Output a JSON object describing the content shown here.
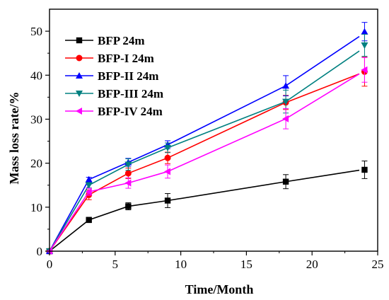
{
  "chart_data": {
    "type": "line",
    "title": "",
    "xlabel": "Time/Month",
    "ylabel": "Mass loss rate/%",
    "xlim": [
      0,
      25
    ],
    "ylim": [
      0,
      55
    ],
    "xticks": [
      0,
      5,
      10,
      15,
      20,
      25
    ],
    "yticks": [
      0,
      10,
      20,
      30,
      40,
      50
    ],
    "grid": false,
    "legend_position": "top-left",
    "x": [
      0,
      3,
      6,
      9,
      18,
      24
    ],
    "series": [
      {
        "name": "BFP 24m",
        "color": "#000000",
        "marker": "square",
        "values": [
          0,
          7.1,
          10.2,
          11.5,
          15.8,
          18.5
        ],
        "errors": [
          0,
          0.6,
          0.8,
          1.6,
          1.6,
          2.0
        ],
        "line_end": 18.4
      },
      {
        "name": "BFP-I 24m",
        "color": "#ff0000",
        "marker": "circle",
        "values": [
          0,
          12.8,
          17.7,
          21.2,
          33.8,
          40.8
        ],
        "errors": [
          0,
          1.1,
          1.2,
          1.3,
          1.6,
          3.3
        ],
        "line_end": 40.3
      },
      {
        "name": "BFP-II 24m",
        "color": "#0000ff",
        "marker": "triangle-up",
        "values": [
          0,
          16.3,
          20.2,
          24.2,
          37.6,
          49.9
        ],
        "errors": [
          0,
          0.5,
          0.9,
          0.9,
          2.3,
          2.1
        ],
        "line_end": 48.8
      },
      {
        "name": "BFP-III 24m",
        "color": "#008080",
        "marker": "triangle-down",
        "values": [
          0,
          15.0,
          19.7,
          23.5,
          34.0,
          46.8
        ],
        "errors": [
          0,
          0.6,
          1.3,
          1.1,
          2.6,
          2.5
        ],
        "line_end": 45.5
      },
      {
        "name": "BFP-IV 24m",
        "color": "#ff00ff",
        "marker": "triangle-left",
        "values": [
          0,
          13.5,
          15.5,
          18.1,
          30.1,
          41.2
        ],
        "errors": [
          0,
          0.8,
          1.2,
          1.5,
          2.3,
          2.8
        ],
        "line_end": 40.3
      }
    ]
  }
}
